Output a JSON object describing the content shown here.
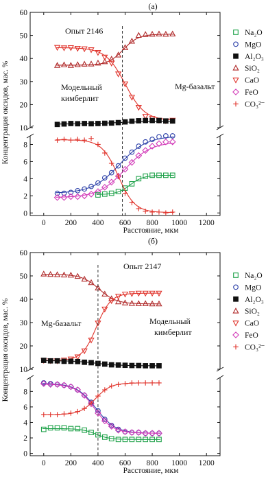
{
  "figure": {
    "ylabel": "Концентрация оксидов, мас. %",
    "xlabel": "Расстояние, мкм"
  },
  "legend": [
    {
      "key": "Na2O",
      "label": "Na₂O",
      "color": "#1fa24a",
      "marker": "square-open"
    },
    {
      "key": "MgO",
      "label": "MgO",
      "color": "#2b3fa8",
      "marker": "circle-open"
    },
    {
      "key": "Al2O3",
      "label": "Al₂O₃",
      "color": "#111111",
      "marker": "square-filled"
    },
    {
      "key": "SiO2",
      "label": "SiO₂",
      "color": "#b02a2a",
      "marker": "triangle-up-open"
    },
    {
      "key": "CaO",
      "label": "CaO",
      "color": "#e0332b",
      "marker": "triangle-down-open"
    },
    {
      "key": "FeO",
      "label": "FeO",
      "color": "#d23ab8",
      "marker": "diamond-open"
    },
    {
      "key": "CO3",
      "label": "CO₃²⁻",
      "color": "#e0332b",
      "marker": "plus"
    }
  ],
  "chart_data": [
    {
      "type": "scatter",
      "panel_label": "(а)",
      "annotations": {
        "experiment": "Опыт 2146",
        "left_region": "Модельный\nкимберлит",
        "right_region": "Mg-базальт"
      },
      "interface_x": 580,
      "xlim": [
        -100,
        1300
      ],
      "x_ticks": [
        0,
        200,
        400,
        600,
        800,
        1000,
        1200
      ],
      "y_upper": {
        "lim": [
          10,
          60
        ],
        "ticks": [
          10,
          20,
          30,
          40,
          50,
          60
        ]
      },
      "y_lower": {
        "lim": [
          -0.3,
          9
        ],
        "ticks": [
          0,
          2,
          4,
          6,
          8
        ]
      },
      "series": [
        {
          "key": "SiO2",
          "axis": "upper",
          "x": [
            100,
            150,
            200,
            250,
            300,
            350,
            400,
            450,
            500,
            550,
            600,
            650,
            700,
            750,
            800,
            850,
            900,
            950
          ],
          "y": [
            37,
            37.2,
            37,
            37.3,
            37.5,
            37.6,
            38,
            38.6,
            39.7,
            41.5,
            44.7,
            47.5,
            50,
            50.4,
            50.5,
            50.6,
            50.5,
            50.6
          ]
        },
        {
          "key": "CaO",
          "axis": "upper",
          "x": [
            100,
            150,
            200,
            250,
            300,
            350,
            400,
            450,
            500,
            550,
            600,
            650,
            700,
            750,
            800,
            850,
            900,
            950
          ],
          "y": [
            44.8,
            44.6,
            44.7,
            44.4,
            44.2,
            43.8,
            42.6,
            40.6,
            38,
            33.3,
            29,
            23.2,
            18.8,
            14.9,
            14,
            13.2,
            13,
            13.2
          ]
        },
        {
          "key": "Al2O3",
          "axis": "upper",
          "x": [
            100,
            150,
            200,
            250,
            300,
            350,
            400,
            450,
            500,
            550,
            600,
            650,
            700,
            750,
            800,
            850,
            900,
            950
          ],
          "y": [
            11.4,
            11.6,
            11.8,
            11.7,
            11.8,
            11.7,
            11.8,
            11.9,
            12,
            12.2,
            12.5,
            12.8,
            13,
            13.1,
            13.1,
            13.1,
            12.9,
            12.9
          ]
        },
        {
          "key": "MgO",
          "axis": "lower",
          "x": [
            100,
            150,
            200,
            250,
            300,
            350,
            400,
            450,
            500,
            550,
            600,
            650,
            700,
            750,
            800,
            850,
            900,
            950
          ],
          "y": [
            2.3,
            2.3,
            2.4,
            2.6,
            2.8,
            3.1,
            3.5,
            4.1,
            4.7,
            5.5,
            6.4,
            7.1,
            7.8,
            8.3,
            8.6,
            8.9,
            9,
            9
          ]
        },
        {
          "key": "FeO",
          "axis": "lower",
          "x": [
            100,
            150,
            200,
            250,
            300,
            350,
            400,
            450,
            500,
            550,
            600,
            650,
            700,
            750,
            800,
            850,
            900,
            950
          ],
          "y": [
            1.8,
            1.8,
            1.9,
            1.9,
            2,
            2.2,
            2.5,
            3,
            3.6,
            4.3,
            5.1,
            5.9,
            6.7,
            7.3,
            7.8,
            8.1,
            8.3,
            8.3
          ]
        },
        {
          "key": "Na2O",
          "axis": "lower",
          "x": [
            400,
            450,
            500,
            550,
            600,
            650,
            700,
            750,
            800,
            850,
            900,
            950
          ],
          "y": [
            2.1,
            2.2,
            2.3,
            2.5,
            2.9,
            3.4,
            4,
            4.3,
            4.4,
            4.4,
            4.4,
            4.4
          ]
        },
        {
          "key": "CO3",
          "axis": "lower",
          "x": [
            100,
            150,
            200,
            250,
            300,
            350,
            400,
            450,
            500,
            550,
            600,
            650,
            700,
            750,
            800,
            850,
            900,
            950
          ],
          "y": [
            8.5,
            8.6,
            8.5,
            8.6,
            8.5,
            8.7,
            8,
            7,
            5.8,
            4.3,
            2.3,
            1.2,
            0.5,
            0.2,
            0.1,
            0.1,
            0,
            0.1
          ]
        }
      ]
    },
    {
      "type": "scatter",
      "panel_label": "(б)",
      "annotations": {
        "experiment": "Опыт 2147",
        "left_region": "Mg-базальт",
        "right_region": "Модельный\nкимберлит"
      },
      "interface_x": 400,
      "xlim": [
        -100,
        1300
      ],
      "x_ticks": [
        0,
        200,
        400,
        600,
        800,
        1000,
        1200
      ],
      "y_upper": {
        "lim": [
          10,
          60
        ],
        "ticks": [
          10,
          20,
          30,
          40,
          50,
          60
        ]
      },
      "y_lower": {
        "lim": [
          -0.3,
          9.8
        ],
        "ticks": [
          0,
          2,
          4,
          6,
          8
        ]
      },
      "series": [
        {
          "key": "SiO2",
          "axis": "upper",
          "x": [
            0,
            50,
            100,
            150,
            200,
            250,
            300,
            350,
            400,
            450,
            500,
            550,
            600,
            650,
            700,
            750,
            800,
            850
          ],
          "y": [
            50.8,
            50.6,
            50.5,
            50.4,
            50.3,
            49.8,
            48.6,
            47.1,
            44.8,
            42.2,
            40.2,
            38.9,
            38.4,
            38.2,
            38.1,
            38.1,
            38,
            38
          ]
        },
        {
          "key": "CaO",
          "axis": "upper",
          "x": [
            0,
            50,
            100,
            150,
            200,
            250,
            300,
            350,
            400,
            450,
            500,
            550,
            600,
            650,
            700,
            750,
            800,
            850
          ],
          "y": [
            13.8,
            13.7,
            13.6,
            13.9,
            14.4,
            15.3,
            17.9,
            22.5,
            29.8,
            35.8,
            39.4,
            41.3,
            42.2,
            42.4,
            42.6,
            42.6,
            42.6,
            42.6
          ]
        },
        {
          "key": "Al2O3",
          "axis": "upper",
          "x": [
            0,
            50,
            100,
            150,
            200,
            250,
            300,
            350,
            400,
            450,
            500,
            550,
            600,
            650,
            700,
            750,
            800,
            850
          ],
          "y": [
            13.8,
            13.6,
            13.6,
            13.4,
            13.4,
            13.3,
            13,
            12.8,
            12.5,
            12.2,
            11.9,
            11.8,
            11.7,
            11.6,
            11.6,
            11.5,
            11.5,
            11.5
          ]
        },
        {
          "key": "MgO",
          "axis": "lower",
          "x": [
            0,
            50,
            100,
            150,
            200,
            250,
            300,
            350,
            400,
            450,
            500,
            550,
            600,
            650,
            700,
            750,
            800,
            850
          ],
          "y": [
            9.1,
            9,
            8.9,
            8.8,
            8.6,
            8.2,
            7.5,
            6.6,
            5.5,
            4.4,
            3.6,
            3.1,
            2.8,
            2.7,
            2.7,
            2.6,
            2.6,
            2.6
          ]
        },
        {
          "key": "FeO",
          "axis": "lower",
          "x": [
            0,
            50,
            100,
            150,
            200,
            250,
            300,
            350,
            400,
            450,
            500,
            550,
            600,
            650,
            700,
            750,
            800,
            850
          ],
          "y": [
            9,
            8.9,
            8.9,
            8.8,
            8.6,
            8.2,
            7.5,
            6.4,
            5.2,
            4.2,
            3.5,
            3,
            2.8,
            2.7,
            2.7,
            2.6,
            2.6,
            2.6
          ]
        },
        {
          "key": "Na2O",
          "axis": "lower",
          "x": [
            0,
            50,
            100,
            150,
            200,
            250,
            300,
            350,
            400,
            450,
            500,
            550,
            600,
            650,
            700,
            750,
            800,
            850
          ],
          "y": [
            3.1,
            3.3,
            3.3,
            3.3,
            3.2,
            3.2,
            3,
            2.7,
            2.4,
            2.1,
            1.9,
            1.8,
            1.8,
            1.8,
            1.8,
            1.8,
            1.8,
            1.8
          ]
        },
        {
          "key": "CO3",
          "axis": "lower",
          "x": [
            0,
            50,
            100,
            150,
            200,
            250,
            300,
            350,
            400,
            450,
            500,
            550,
            600,
            650,
            700,
            750,
            800,
            850
          ],
          "y": [
            5,
            5,
            5,
            5.1,
            5.2,
            5.4,
            5.8,
            6.5,
            7.4,
            8.2,
            8.7,
            8.9,
            9,
            9.1,
            9.1,
            9.1,
            9.1,
            9.1
          ]
        }
      ]
    }
  ]
}
